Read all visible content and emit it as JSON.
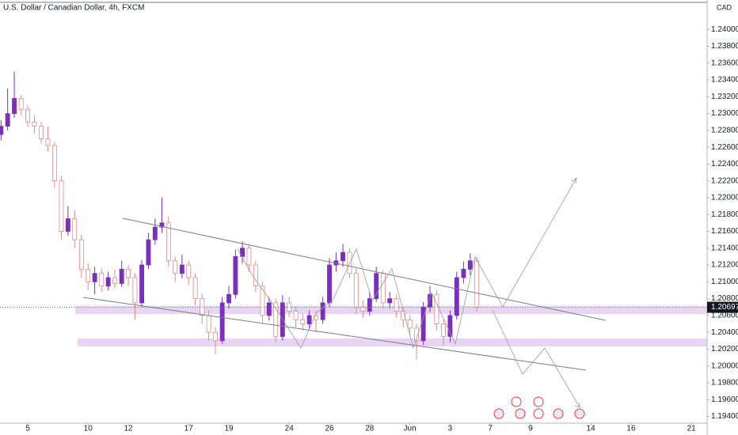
{
  "chart_data": {
    "type": "candlestick",
    "title": "U.S. Dollar / Canadian Dollar, 4h, FXCM",
    "currency": "CAD",
    "last_price": 1.20697,
    "up_color": "#7b2fbe",
    "down_color": "#f23645",
    "xlim": [
      -1.38,
      33.78
    ],
    "ylim": [
      1.1932,
      1.2435
    ],
    "xticks": [
      {
        "value": 0,
        "label": "5"
      },
      {
        "value": 3,
        "label": "10"
      },
      {
        "value": 5,
        "label": "12"
      },
      {
        "value": 8,
        "label": "17"
      },
      {
        "value": 10,
        "label": "19"
      },
      {
        "value": 13,
        "label": "24"
      },
      {
        "value": 15,
        "label": "26"
      },
      {
        "value": 17,
        "label": "28"
      },
      {
        "value": 19,
        "label": "Jun"
      },
      {
        "value": 21,
        "label": "3"
      },
      {
        "value": 23,
        "label": "7"
      },
      {
        "value": 25,
        "label": "9"
      },
      {
        "value": 28,
        "label": "14"
      },
      {
        "value": 30,
        "label": "16"
      },
      {
        "value": 33,
        "label": "21"
      }
    ],
    "yticks": [
      {
        "value": 1.194,
        "label": "1.19400"
      },
      {
        "value": 1.196,
        "label": "1.19600"
      },
      {
        "value": 1.198,
        "label": "1.19800"
      },
      {
        "value": 1.2,
        "label": "1.20000"
      },
      {
        "value": 1.202,
        "label": "1.20200"
      },
      {
        "value": 1.204,
        "label": "1.20400"
      },
      {
        "value": 1.206,
        "label": "1.20600"
      },
      {
        "value": 1.208,
        "label": "1.20800"
      },
      {
        "value": 1.21,
        "label": "1.21000"
      },
      {
        "value": 1.212,
        "label": "1.21200"
      },
      {
        "value": 1.214,
        "label": "1.21400"
      },
      {
        "value": 1.216,
        "label": "1.21600"
      },
      {
        "value": 1.218,
        "label": "1.21800"
      },
      {
        "value": 1.22,
        "label": "1.22000"
      },
      {
        "value": 1.222,
        "label": "1.22200"
      },
      {
        "value": 1.224,
        "label": "1.22400"
      },
      {
        "value": 1.226,
        "label": "1.22600"
      },
      {
        "value": 1.228,
        "label": "1.22800"
      },
      {
        "value": 1.23,
        "label": "1.23000"
      },
      {
        "value": 1.232,
        "label": "1.23200"
      },
      {
        "value": 1.234,
        "label": "1.23400"
      },
      {
        "value": 1.236,
        "label": "1.23600"
      },
      {
        "value": 1.238,
        "label": "1.23800"
      },
      {
        "value": 1.24,
        "label": "1.24000"
      }
    ],
    "x": [
      -1.33,
      -1.0,
      -0.67,
      -0.33,
      0,
      0.33,
      0.67,
      1.0,
      1.33,
      1.67,
      2.0,
      2.33,
      2.67,
      3.0,
      3.33,
      3.67,
      4.0,
      4.33,
      4.67,
      5.0,
      5.33,
      5.67,
      6.0,
      6.33,
      6.67,
      7.0,
      7.33,
      7.67,
      8.0,
      8.33,
      8.67,
      9.0,
      9.33,
      9.67,
      10.0,
      10.33,
      10.67,
      11.0,
      11.33,
      11.67,
      12.0,
      12.33,
      12.67,
      13.0,
      13.33,
      13.67,
      14.0,
      14.33,
      14.67,
      15.0,
      15.33,
      15.67,
      16.0,
      16.33,
      16.67,
      17.0,
      17.33,
      17.67,
      18.0,
      18.33,
      18.67,
      19.0,
      19.33,
      19.67,
      20.0,
      20.33,
      20.67,
      21.0,
      21.33,
      21.67,
      22.0,
      22.33
    ],
    "open": [
      1.2275,
      1.2285,
      1.23,
      1.2318,
      1.2305,
      1.229,
      1.2285,
      1.227,
      1.2262,
      1.222,
      1.216,
      1.2175,
      1.215,
      1.2115,
      1.21,
      1.211,
      1.2095,
      1.2105,
      1.2098,
      1.2115,
      1.2105,
      1.2075,
      1.212,
      1.215,
      1.2165,
      1.217,
      1.2125,
      1.211,
      1.212,
      1.2105,
      1.208,
      1.206,
      1.204,
      1.203,
      1.2075,
      1.2085,
      1.213,
      1.214,
      1.212,
      1.2095,
      1.206,
      1.2075,
      1.2035,
      1.2075,
      1.2065,
      1.2055,
      1.205,
      1.206,
      1.2055,
      1.2075,
      1.212,
      1.2125,
      1.2135,
      1.211,
      1.207,
      1.2065,
      1.208,
      1.211,
      1.2075,
      1.208,
      1.2065,
      1.2055,
      1.2045,
      1.203,
      1.207,
      1.2085,
      1.205,
      1.2035,
      1.206,
      1.2105,
      1.2115,
      1.2125
    ],
    "high": [
      1.2292,
      1.233,
      1.235,
      1.2322,
      1.231,
      1.2298,
      1.229,
      1.2285,
      1.2266,
      1.2226,
      1.219,
      1.2185,
      1.2156,
      1.2122,
      1.2118,
      1.2116,
      1.2112,
      1.2115,
      1.2125,
      1.212,
      1.211,
      1.2126,
      1.2158,
      1.2175,
      1.22,
      1.2178,
      1.213,
      1.2132,
      1.2125,
      1.211,
      1.2086,
      1.2066,
      1.2046,
      1.2082,
      1.2095,
      1.2138,
      1.2148,
      1.2145,
      1.2125,
      1.21,
      1.2082,
      1.208,
      1.2084,
      1.2082,
      1.207,
      1.2062,
      1.2066,
      1.2065,
      1.2082,
      1.2128,
      1.2135,
      1.2145,
      1.214,
      1.2116,
      1.2078,
      1.2088,
      1.2118,
      1.2114,
      1.2088,
      1.2085,
      1.207,
      1.206,
      1.205,
      1.2076,
      1.2095,
      1.209,
      1.2055,
      1.2066,
      1.2112,
      1.2124,
      1.2134,
      1.213
    ],
    "low": [
      1.2268,
      1.228,
      1.2295,
      1.2298,
      1.2284,
      1.2276,
      1.2264,
      1.2255,
      1.2212,
      1.215,
      1.2155,
      1.214,
      1.2105,
      1.209,
      1.2085,
      1.2088,
      1.209,
      1.2092,
      1.2094,
      1.2095,
      1.2055,
      1.207,
      1.2115,
      1.2144,
      1.2158,
      1.2118,
      1.21,
      1.2104,
      1.2096,
      1.2072,
      1.205,
      1.203,
      1.2014,
      1.2026,
      1.2068,
      1.208,
      1.2122,
      1.2112,
      1.2088,
      1.2052,
      1.2054,
      1.2028,
      1.203,
      1.2058,
      1.2046,
      1.2042,
      1.2044,
      1.204,
      1.205,
      1.207,
      1.2112,
      1.2118,
      1.2104,
      1.2062,
      1.2058,
      1.206,
      1.2076,
      1.2068,
      1.2068,
      1.2058,
      1.2046,
      1.2036,
      1.2008,
      1.2025,
      1.2064,
      1.2042,
      1.2024,
      1.2028,
      1.2055,
      1.2098,
      1.2108,
      1.2064
    ],
    "close": [
      1.2285,
      1.23,
      1.2318,
      1.2305,
      1.229,
      1.2285,
      1.227,
      1.2262,
      1.222,
      1.216,
      1.2175,
      1.215,
      1.2115,
      1.21,
      1.211,
      1.2095,
      1.2105,
      1.2098,
      1.2115,
      1.2105,
      1.2075,
      1.212,
      1.215,
      1.2165,
      1.217,
      1.2125,
      1.211,
      1.212,
      1.2105,
      1.208,
      1.206,
      1.204,
      1.203,
      1.2075,
      1.2085,
      1.213,
      1.214,
      1.212,
      1.2095,
      1.206,
      1.2075,
      1.2035,
      1.2075,
      1.2065,
      1.2055,
      1.205,
      1.206,
      1.2055,
      1.2075,
      1.212,
      1.2125,
      1.2135,
      1.211,
      1.207,
      1.2065,
      1.208,
      1.211,
      1.2075,
      1.208,
      1.2065,
      1.2055,
      1.2045,
      1.203,
      1.207,
      1.2085,
      1.205,
      1.2035,
      1.206,
      1.2105,
      1.2115,
      1.2125,
      1.207
    ]
  }
}
